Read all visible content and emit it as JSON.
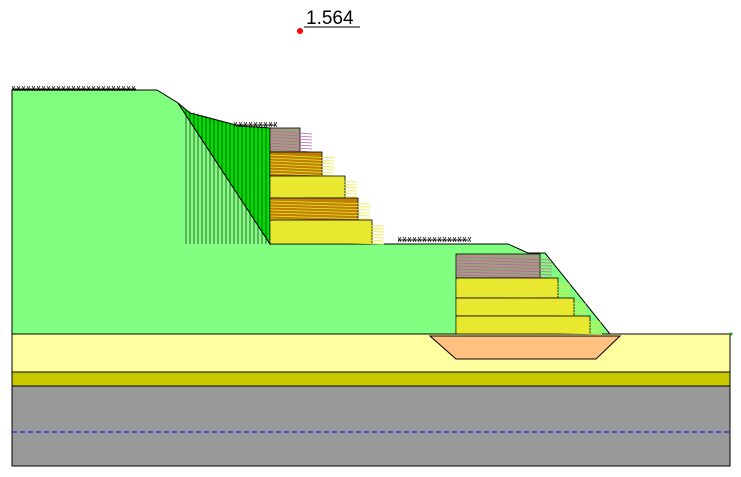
{
  "analysis": {
    "factor_of_safety": "1.564"
  },
  "colors": {
    "slope_fill": "#80FF80",
    "stratum_upper_fill": "#FFFFA0",
    "stratum_middle_fill": "#C8C800",
    "bedrock_fill": "#999999",
    "pad_fill": "#FFC080",
    "slip_mass_fill": "#00E000",
    "reinforcement_yellow": "#E8E830",
    "reinforcement_orange": "#C08000",
    "reinforcement_grey": "#A0A080",
    "reinforcement_pink": "#C060A0",
    "water_table": "#0000FF",
    "slip_center": "#FF0000",
    "outline": "#000000"
  }
}
